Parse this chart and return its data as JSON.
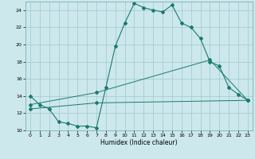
{
  "xlabel": "Humidex (Indice chaleur)",
  "xlim": [
    -0.5,
    23.5
  ],
  "ylim": [
    10,
    25
  ],
  "yticks": [
    10,
    12,
    14,
    16,
    18,
    20,
    22,
    24
  ],
  "xticks": [
    0,
    1,
    2,
    3,
    4,
    5,
    6,
    7,
    8,
    9,
    10,
    11,
    12,
    13,
    14,
    15,
    16,
    17,
    18,
    19,
    20,
    21,
    22,
    23
  ],
  "background_color": "#cce8ec",
  "grid_color": "#9fc8ce",
  "line_color": "#1a7a6e",
  "line1_x": [
    0,
    1,
    2,
    3,
    4,
    5,
    6,
    7,
    8,
    9,
    10,
    11,
    12,
    13,
    14,
    15,
    16,
    17,
    18,
    19,
    20,
    21,
    22,
    23
  ],
  "line1_y": [
    14.0,
    13.0,
    12.5,
    11.0,
    10.8,
    10.5,
    10.5,
    10.3,
    15.0,
    19.8,
    22.5,
    24.8,
    24.3,
    24.0,
    23.8,
    24.6,
    22.5,
    22.0,
    20.7,
    18.0,
    17.5,
    15.0,
    14.2,
    13.5
  ],
  "line2_x": [
    0,
    7,
    19,
    23
  ],
  "line2_y": [
    13.0,
    14.4,
    18.2,
    13.5
  ],
  "line3_x": [
    0,
    7,
    23
  ],
  "line3_y": [
    12.5,
    13.2,
    13.5
  ]
}
